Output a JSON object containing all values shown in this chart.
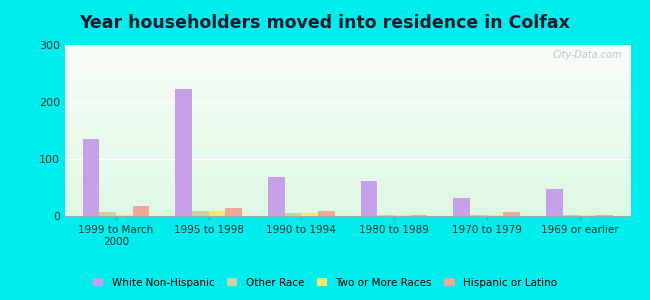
{
  "title": "Year householders moved into residence in Colfax",
  "categories": [
    "1999 to March\n2000",
    "1995 to 1998",
    "1990 to 1994",
    "1980 to 1989",
    "1970 to 1979",
    "1969 or earlier"
  ],
  "series": {
    "White Non-Hispanic": [
      135,
      222,
      68,
      62,
      32,
      47
    ],
    "Other Race": [
      7,
      8,
      5,
      2,
      2,
      2
    ],
    "Two or More Races": [
      2,
      8,
      6,
      1,
      1,
      1
    ],
    "Hispanic or Latino": [
      18,
      14,
      9,
      2,
      7,
      2
    ]
  },
  "colors": {
    "White Non-Hispanic": "#c8a0e8",
    "Other Race": "#c8d4a0",
    "Two or More Races": "#f0e870",
    "Hispanic or Latino": "#f0a898"
  },
  "ylim": [
    0,
    300
  ],
  "yticks": [
    0,
    100,
    200,
    300
  ],
  "bar_width": 0.18,
  "outer_bg": "#00eded",
  "watermark": "City-Data.com",
  "title_fontsize": 12.5
}
